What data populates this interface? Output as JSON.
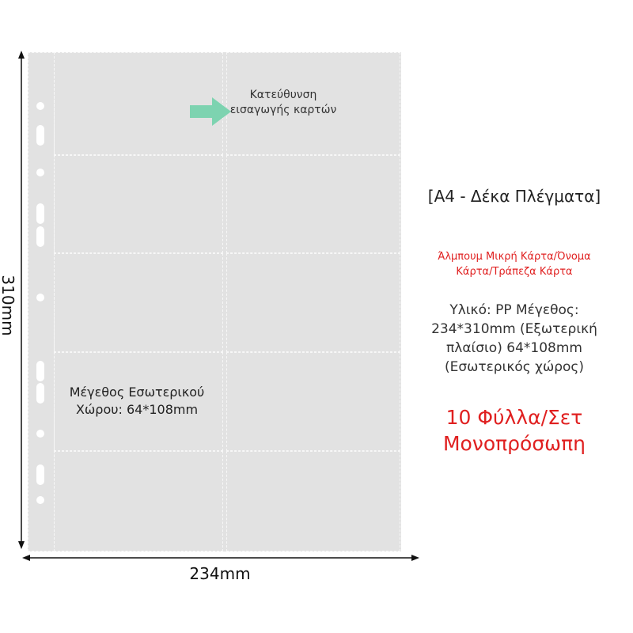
{
  "dimensions": {
    "height_label": "310mm",
    "width_label": "234mm"
  },
  "sheet": {
    "insert_direction": "Κατεύθυνση εισαγωγής καρτών",
    "inner_size_line1": "Μέγεθος Εσωτερικού",
    "inner_size_line2": "Χώρου: 64*108mm",
    "arrow_color": "#7dd3b0"
  },
  "info": {
    "title": "[A4 - Δέκα Πλέγματα]",
    "usage_line1": "Άλμπουμ Μικρή Κάρτα/Όνομα",
    "usage_line2": "Κάρτα/Τράπεζα Κάρτα",
    "spec_lines": [
      "Υλικό: PP Μέγεθος:",
      "234*310mm (Εξωτερική",
      "πλαίσιο) 64*108mm",
      "(Εσωτερικός χώρος)"
    ],
    "count_line1": "10 Φύλλα/Σετ",
    "count_line2": "Μονοπρόσωπη",
    "accent_color": "#e02020"
  }
}
